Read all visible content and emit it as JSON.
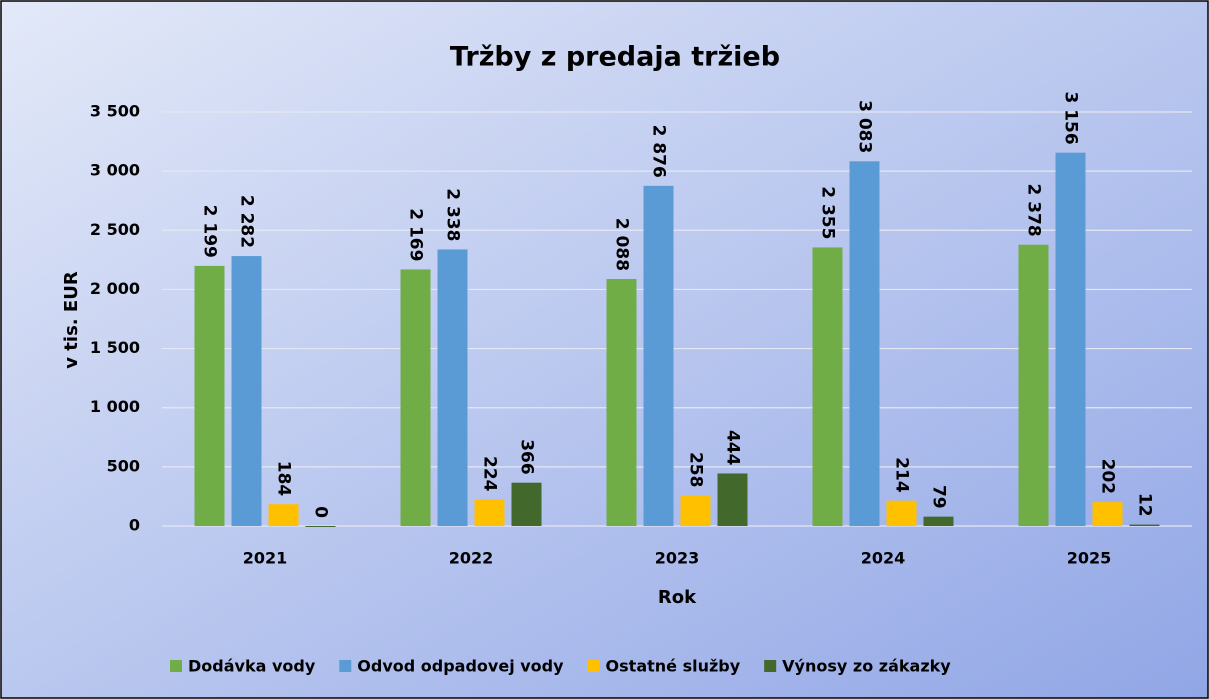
{
  "chart_data": {
    "type": "bar",
    "title": "Tržby z predaja tržieb",
    "x_label": "Rok",
    "y_label": "v tis. EUR",
    "categories": [
      "2021",
      "2022",
      "2023",
      "2024",
      "2025"
    ],
    "series": [
      {
        "name": "Dodávka vody",
        "color": "#70ad47",
        "values": [
          2199,
          2169,
          2088,
          2355,
          2378
        ],
        "value_labels": [
          "2 199",
          "2 169",
          "2 088",
          "2 355",
          "2 378"
        ]
      },
      {
        "name": "Odvod odpadovej vody",
        "color": "#5b9bd5",
        "values": [
          2282,
          2338,
          2876,
          3083,
          3156
        ],
        "value_labels": [
          "2 282",
          "2 338",
          "2 876",
          "3 083",
          "3 156"
        ]
      },
      {
        "name": "Ostatné služby",
        "color": "#ffc000",
        "values": [
          184,
          224,
          258,
          214,
          202
        ]
      },
      {
        "name": "Výnosy zo zákazky",
        "color": "#43682b",
        "values": [
          0,
          366,
          444,
          79,
          12
        ]
      }
    ],
    "ylim": [
      0,
      3500
    ],
    "yticks": [
      0,
      500,
      {
        "value": 1000,
        "label": "1 000"
      },
      {
        "value": 1500,
        "label": "1 500"
      },
      {
        "value": 2000,
        "label": "2 000"
      },
      {
        "value": 2500,
        "label": "2 500"
      },
      {
        "value": 3000,
        "label": "3 000"
      },
      {
        "value": 3500,
        "label": "3 500"
      }
    ],
    "grid": true,
    "legend": "bottom"
  }
}
